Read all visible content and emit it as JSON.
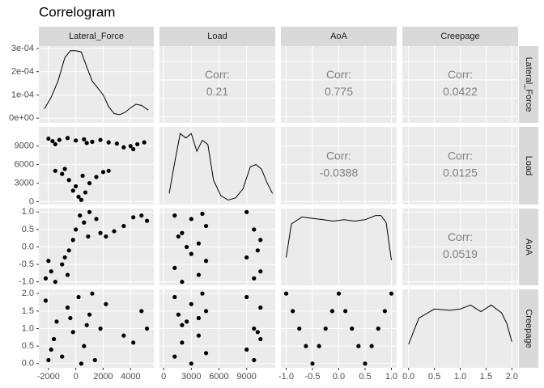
{
  "title": "Correlogram",
  "variables": [
    {
      "name": "Lateral_Force",
      "lim": [
        -2700,
        5700
      ],
      "ticks": [
        -2000,
        0,
        2000,
        4000
      ]
    },
    {
      "name": "Load",
      "lim": [
        -450,
        12100
      ],
      "ticks": [
        0,
        3000,
        6000,
        9000
      ]
    },
    {
      "name": "AoA",
      "lim": [
        -1.1,
        1.1
      ],
      "ticks": [
        {
          "value": -1,
          "label": "-1.0"
        },
        -0.5,
        {
          "value": 0,
          "label": "0.0"
        },
        0.5,
        {
          "value": 1,
          "label": "1.0"
        }
      ]
    },
    {
      "name": "Creepage",
      "lim": [
        -0.12,
        2.12
      ],
      "ticks": [
        {
          "value": 0,
          "label": "0.0"
        },
        0.5,
        {
          "value": 1,
          "label": "1.0"
        },
        1.5,
        {
          "value": 2,
          "label": "2.0"
        }
      ]
    }
  ],
  "chart_data": [
    {
      "type": "line",
      "ylim": [
        -2e-05,
        0.00031
      ],
      "yticks": [
        {
          "value": 0,
          "label": "0e+00"
        },
        {
          "value": 0.0001,
          "label": "1e-04"
        },
        {
          "value": 0.0002,
          "label": "2e-04"
        },
        {
          "value": 0.0003,
          "label": "3e-04"
        }
      ],
      "x": [
        -2300,
        -1800,
        -1300,
        -800,
        -400,
        0,
        400,
        800,
        1200,
        1600,
        2000,
        2400,
        2800,
        3200,
        3600,
        4000,
        4400,
        4800,
        5300
      ],
      "y": [
        4e-05,
        9e-05,
        0.00016,
        0.00026,
        0.00029,
        0.00029,
        0.000285,
        0.00022,
        0.00016,
        0.00013,
        0.0001,
        5e-05,
        2e-05,
        1.5e-05,
        2.5e-05,
        4.5e-05,
        6e-05,
        5.5e-05,
        3.5e-05
      ]
    },
    {
      "type": "text",
      "label": "Corr:",
      "value": 0.21
    },
    {
      "type": "text",
      "label": "Corr:",
      "value": 0.775
    },
    {
      "type": "text",
      "label": "Corr:",
      "value": 0.0422
    },
    {
      "type": "scatter",
      "x": [
        -2000,
        -1700,
        -1200,
        -600,
        0,
        600,
        1200,
        1800,
        2400,
        3000,
        3500,
        4000,
        4500,
        5000,
        -1500,
        800,
        4200,
        -1500,
        -1000,
        -500,
        0,
        200,
        400,
        700,
        1000,
        1500,
        2000,
        2400,
        -800,
        500,
        -200
      ],
      "y": [
        10200,
        9800,
        10000,
        10300,
        9900,
        10100,
        9700,
        10000,
        9600,
        9400,
        8800,
        9000,
        9300,
        9600,
        9300,
        9500,
        8500,
        5000,
        4500,
        3500,
        2500,
        800,
        300,
        1500,
        3000,
        4000,
        4800,
        5000,
        5300,
        4200,
        1800
      ]
    },
    {
      "type": "line",
      "ylim": [
        -5e-06,
        0.00017
      ],
      "x": [
        600,
        1200,
        1800,
        2400,
        3000,
        3600,
        4200,
        4800,
        5400,
        6200,
        7000,
        7800,
        8600,
        9400,
        10000,
        10600,
        11200,
        11800
      ],
      "y": [
        2e-05,
        9e-05,
        0.000155,
        0.000145,
        0.000155,
        0.000115,
        0.00014,
        0.00013,
        5e-05,
        1.5e-05,
        5e-06,
        1e-05,
        3e-05,
        8e-05,
        8.5e-05,
        7.5e-05,
        4.5e-05,
        2e-05
      ]
    },
    {
      "type": "text",
      "label": "Corr:",
      "value": -0.0388
    },
    {
      "type": "text",
      "label": "Corr:",
      "value": 0.0125
    },
    {
      "type": "scatter",
      "x": [
        -2200,
        -1800,
        -1500,
        -1000,
        -600,
        -2000,
        -500,
        -200,
        0,
        300,
        600,
        1000,
        1500,
        1800,
        2200,
        2800,
        3500,
        4200,
        4800,
        5200,
        900,
        -800
      ],
      "y": [
        -0.9,
        -0.7,
        -1.0,
        -0.5,
        -0.8,
        -0.4,
        -0.1,
        0.2,
        0.5,
        0.9,
        0.7,
        1.0,
        0.8,
        0.4,
        0.3,
        0.45,
        0.6,
        0.85,
        0.9,
        0.75,
        0.3,
        -0.3
      ]
    },
    {
      "type": "scatter",
      "x": [
        1200,
        1200,
        2000,
        2000,
        3000,
        3000,
        3800,
        3800,
        4600,
        4600,
        9000,
        9000,
        9800,
        9800,
        10500,
        10500,
        2500,
        4200,
        10200,
        1600
      ],
      "y": [
        0.9,
        -0.6,
        0.4,
        -1.0,
        0.8,
        -0.2,
        0.1,
        -0.8,
        0.6,
        -0.4,
        1.0,
        -0.3,
        0.5,
        -0.9,
        0.2,
        -0.7,
        0.0,
        0.95,
        -0.1,
        0.3
      ]
    },
    {
      "type": "line",
      "ylim": [
        0,
        0.55
      ],
      "x": [
        -1,
        -0.9,
        -0.7,
        -0.5,
        -0.3,
        -0.1,
        0.1,
        0.3,
        0.5,
        0.7,
        0.8,
        0.9,
        1
      ],
      "y": [
        0.2,
        0.44,
        0.49,
        0.48,
        0.47,
        0.46,
        0.47,
        0.46,
        0.47,
        0.5,
        0.5,
        0.45,
        0.18
      ]
    },
    {
      "type": "text",
      "label": "Corr:",
      "value": 0.0519
    },
    {
      "type": "scatter",
      "x": [
        -2200,
        -1800,
        -1400,
        -1000,
        -600,
        -200,
        200,
        600,
        1000,
        1400,
        1800,
        2200,
        -1600,
        -400,
        400,
        1200,
        3500,
        4200,
        4800,
        5200,
        800,
        -2000
      ],
      "y": [
        1.8,
        0.4,
        1.2,
        0.2,
        1.6,
        0.9,
        1.9,
        0.5,
        1.4,
        0.1,
        1.0,
        1.7,
        0.7,
        1.3,
        0.0,
        2.0,
        0.8,
        0.6,
        1.5,
        1.0,
        1.1,
        0.1
      ]
    },
    {
      "type": "scatter",
      "x": [
        1200,
        1200,
        2000,
        2000,
        3000,
        3000,
        3800,
        3800,
        4600,
        4600,
        9000,
        9000,
        9800,
        9800,
        10500,
        10500,
        2500,
        4200,
        10200,
        1600
      ],
      "y": [
        1.9,
        0.2,
        1.1,
        0.6,
        1.7,
        0.0,
        1.3,
        0.8,
        1.5,
        0.3,
        1.9,
        0.4,
        1.0,
        0.1,
        1.6,
        0.7,
        1.2,
        2.0,
        0.9,
        1.4
      ]
    },
    {
      "type": "scatter",
      "x": [
        -1,
        -0.875,
        -0.75,
        -0.625,
        -0.5,
        -0.375,
        -0.25,
        -0.125,
        0,
        0.125,
        0.25,
        0.375,
        0.5,
        0.625,
        0.75,
        0.875,
        1
      ],
      "y": [
        2,
        1.5,
        1,
        0.5,
        0,
        0.5,
        1,
        1.5,
        2,
        1.5,
        1,
        0.5,
        0,
        0.5,
        1,
        1.5,
        2
      ]
    },
    {
      "type": "line",
      "ylim": [
        0,
        0.6
      ],
      "x": [
        0,
        0.2,
        0.5,
        0.8,
        1.0,
        1.2,
        1.4,
        1.6,
        1.8,
        1.9,
        2.0
      ],
      "y": [
        0.18,
        0.38,
        0.45,
        0.44,
        0.45,
        0.48,
        0.43,
        0.48,
        0.42,
        0.34,
        0.2
      ]
    }
  ]
}
